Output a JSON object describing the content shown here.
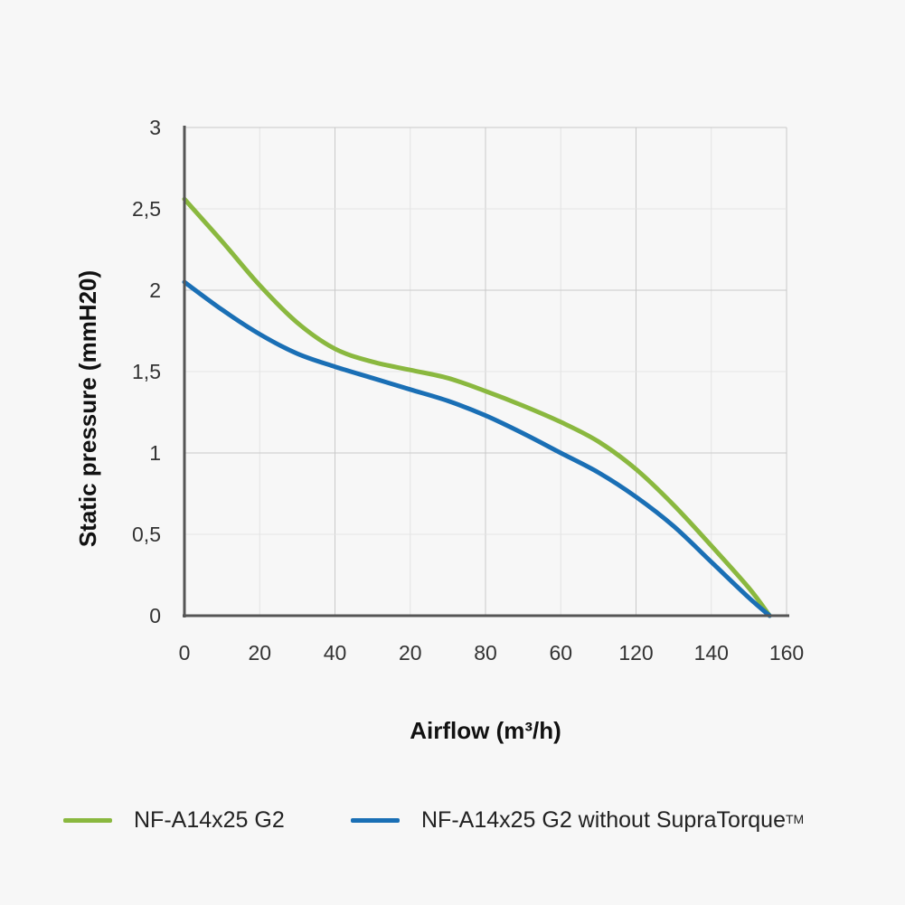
{
  "chart_data": {
    "type": "line",
    "title": "",
    "xlabel": "Airflow (m³/h)",
    "ylabel": "Static pressure (mmH20)",
    "xlim": [
      0,
      160
    ],
    "ylim": [
      0,
      3
    ],
    "x_tick_labels": [
      "0",
      "20",
      "40",
      "20",
      "80",
      "60",
      "120",
      "140",
      "160"
    ],
    "y_tick_labels": [
      "0",
      "0,5",
      "1",
      "1,5",
      "2",
      "2,5",
      "3"
    ],
    "grid": true,
    "legend_position": "bottom",
    "x": [
      0,
      10,
      20,
      30,
      40,
      50,
      60,
      70,
      80,
      90,
      100,
      110,
      120,
      130,
      140,
      150,
      155.5
    ],
    "series": [
      {
        "name": "NF-A14x25 G2",
        "color": "#8ab83f",
        "values": [
          2.56,
          2.3,
          2.03,
          1.8,
          1.64,
          1.56,
          1.51,
          1.46,
          1.38,
          1.29,
          1.19,
          1.07,
          0.9,
          0.68,
          0.43,
          0.17,
          0
        ]
      },
      {
        "name": "NF-A14x25 G2 without SupraTorque",
        "trademark": "TM",
        "color": "#1a6fb5",
        "values": [
          2.05,
          1.88,
          1.73,
          1.61,
          1.53,
          1.46,
          1.39,
          1.32,
          1.23,
          1.12,
          1.0,
          0.88,
          0.73,
          0.55,
          0.33,
          0.11,
          0
        ]
      }
    ]
  }
}
